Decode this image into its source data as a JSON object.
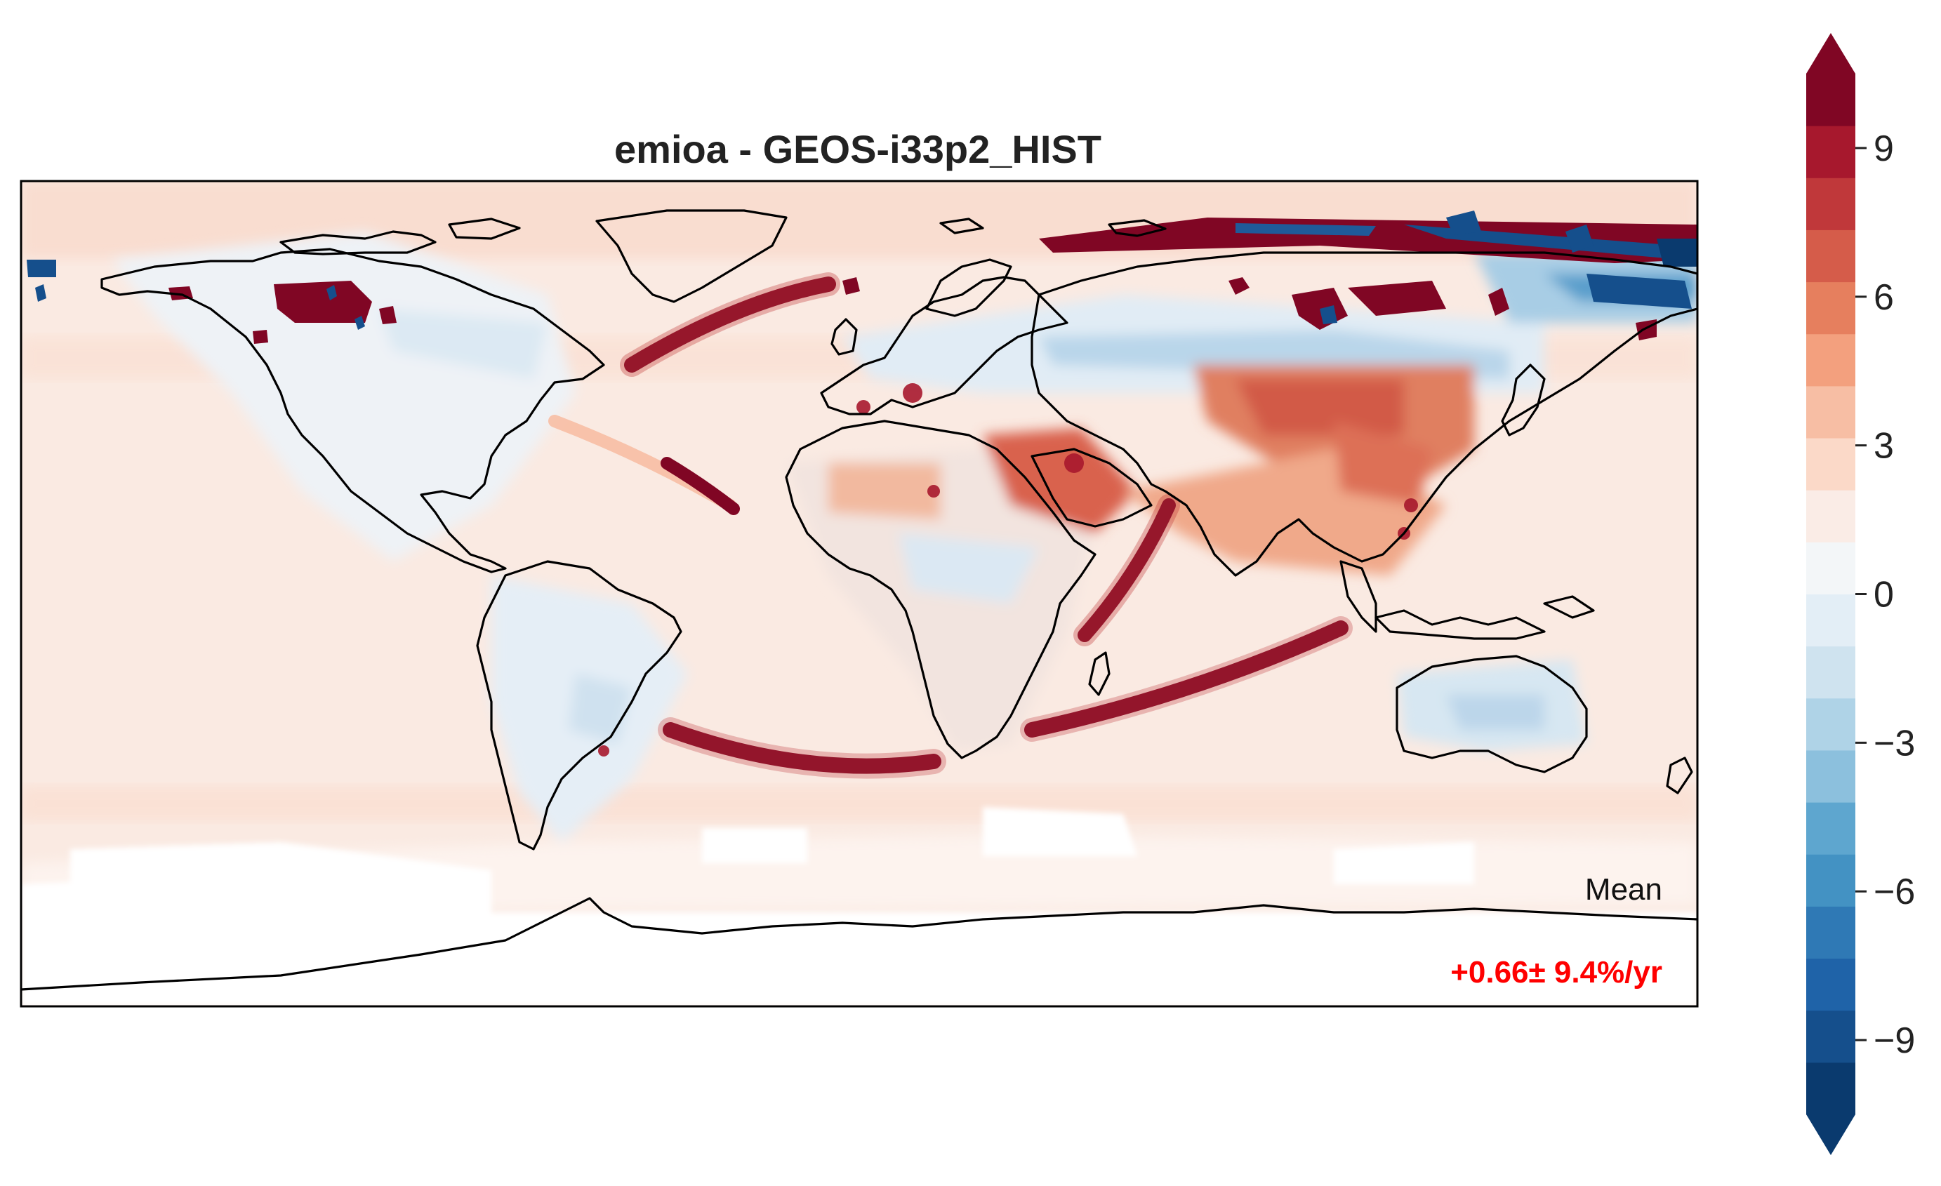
{
  "title": "emioa - GEOS-i33p2_HIST",
  "map": {
    "projection": "PlateCarree",
    "extent_lon": [
      -180,
      180
    ],
    "extent_lat": [
      -90,
      90
    ],
    "stats_label": "Mean",
    "stats_value": "+0.66± 9.4%/yr",
    "stats_color": "#ff0000"
  },
  "colorbar": {
    "vmin": -10.5,
    "vmax": 10.5,
    "levels_step": 1.5,
    "ticks": [
      -9,
      -6,
      -3,
      0,
      3,
      6,
      9
    ],
    "tick_labels": [
      "−9",
      "−6",
      "−3",
      "0",
      "3",
      "6",
      "9"
    ],
    "extend": "both",
    "colormap": "RdBu_r",
    "colors": [
      "#0a3a6e",
      "#154f8c",
      "#1f63a8",
      "#2f79b5",
      "#4392c3",
      "#5ea6cf",
      "#8cc0dd",
      "#afd3e7",
      "#cfe3ef",
      "#e3eef6",
      "#f3f6f8",
      "#faece6",
      "#fbd9c8",
      "#f7bea4",
      "#f3a07e",
      "#e67f5e",
      "#d55c4a",
      "#c0383a",
      "#a7182d",
      "#800624"
    ]
  }
}
